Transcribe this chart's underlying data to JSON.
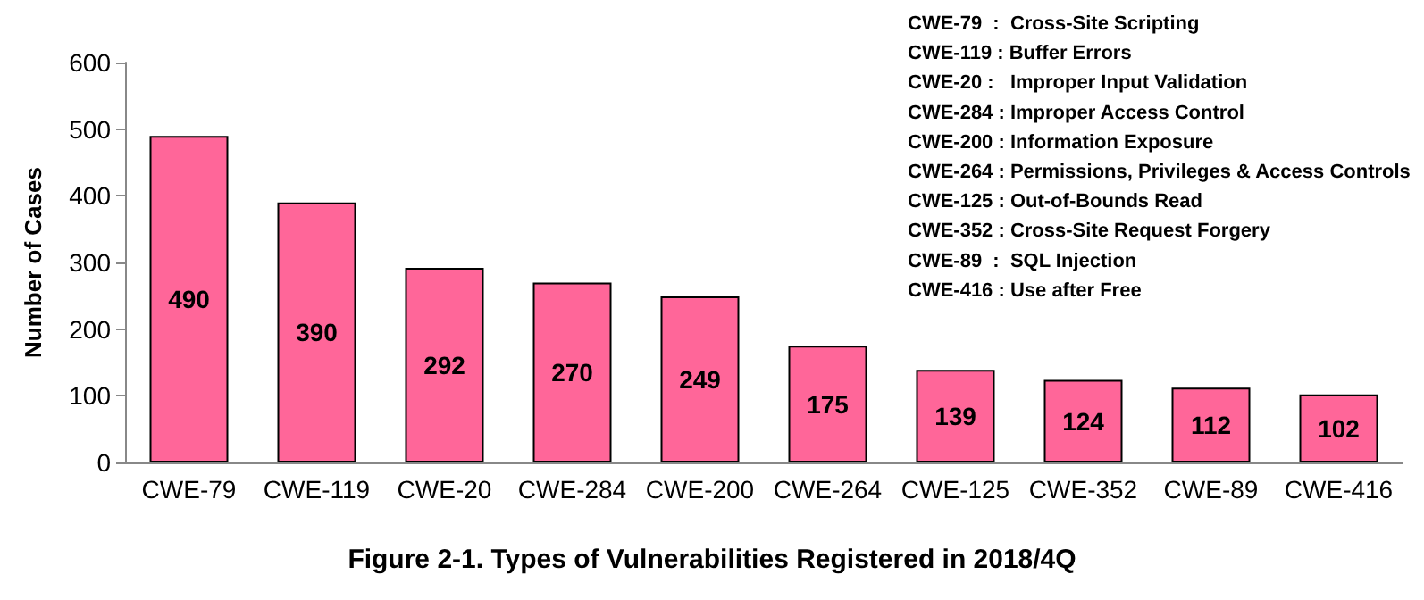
{
  "chart_data": {
    "type": "bar",
    "title": "Figure 2-1. Types of Vulnerabilities Registered in 2018/4Q",
    "ylabel": "Number of Cases",
    "categories": [
      "CWE-79",
      "CWE-119",
      "CWE-20",
      "CWE-284",
      "CWE-200",
      "CWE-264",
      "CWE-125",
      "CWE-352",
      "CWE-89",
      "CWE-416"
    ],
    "values": [
      490,
      390,
      292,
      270,
      249,
      175,
      139,
      124,
      112,
      102
    ],
    "color": "#ff6699",
    "ylim": [
      0,
      600
    ],
    "yticks": [
      0,
      100,
      200,
      300,
      400,
      500,
      600
    ],
    "grid": false,
    "data_labels": true,
    "annotations": [
      "CWE-79  :  Cross-Site Scripting",
      "CWE-119 : Buffer Errors",
      "CWE-20 :   Improper Input Validation",
      "CWE-284 : Improper Access Control",
      "CWE-200 : Information Exposure",
      "CWE-264 : Permissions, Privileges & Access Controls",
      "CWE-125 : Out-of-Bounds Read",
      "CWE-352 : Cross-Site Request Forgery",
      "CWE-89  :  SQL Injection",
      "CWE-416 : Use after Free"
    ]
  }
}
